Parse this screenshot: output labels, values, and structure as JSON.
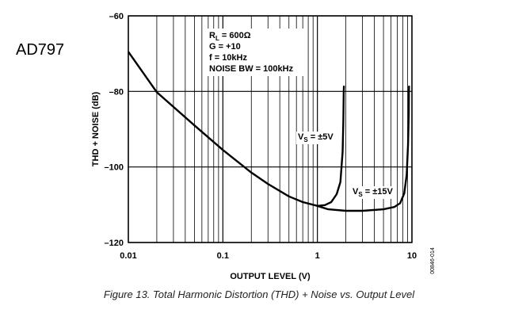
{
  "part_label": "AD797",
  "caption": "Figure 13. Total Harmonic Distortion (THD) + Noise vs. Output Level",
  "figure_id": "00846-014",
  "chart_data": {
    "type": "line",
    "title": "",
    "xlabel": "OUTPUT LEVEL (V)",
    "ylabel": "THD + NOISE (dB)",
    "x_scale": "log",
    "xlim": [
      0.01,
      10
    ],
    "ylim": [
      -120,
      -60
    ],
    "x_ticks": [
      0.01,
      0.1,
      1,
      10
    ],
    "x_tick_labels": [
      "0.01",
      "0.1",
      "1",
      "10"
    ],
    "y_ticks": [
      -60,
      -80,
      -100,
      -120
    ],
    "y_tick_labels": [
      "–60",
      "–80",
      "–100",
      "–120"
    ],
    "grid": true,
    "annotation": {
      "lines": [
        {
          "main": "R",
          "sub": "L",
          "rest": " = 600Ω"
        },
        {
          "main": "G = +10",
          "sub": "",
          "rest": ""
        },
        {
          "main": "f = 10kHz",
          "sub": "",
          "rest": ""
        },
        {
          "main": "NOISE BW = 100kHz",
          "sub": "",
          "rest": ""
        }
      ]
    },
    "series": [
      {
        "label": {
          "main": "V",
          "sub": "S",
          "rest": " = ±5V"
        },
        "points": [
          [
            0.01,
            -69.5
          ],
          [
            0.02,
            -80.2
          ],
          [
            0.05,
            -89
          ],
          [
            0.1,
            -95.5
          ],
          [
            0.2,
            -101.5
          ],
          [
            0.3,
            -104.5
          ],
          [
            0.5,
            -107.8
          ],
          [
            0.7,
            -109.3
          ],
          [
            1.0,
            -110.3
          ],
          [
            1.2,
            -110.1
          ],
          [
            1.4,
            -109.3
          ],
          [
            1.6,
            -107.2
          ],
          [
            1.75,
            -104
          ],
          [
            1.85,
            -96
          ],
          [
            1.88,
            -88
          ],
          [
            1.9,
            -80
          ],
          [
            1.91,
            -78.5
          ]
        ]
      },
      {
        "label": {
          "main": "V",
          "sub": "S",
          "rest": " = ±15V"
        },
        "points": [
          [
            1.0,
            -110.3
          ],
          [
            1.3,
            -111.2
          ],
          [
            2,
            -111.6
          ],
          [
            3,
            -111.6
          ],
          [
            5,
            -111.2
          ],
          [
            6.5,
            -110.6
          ],
          [
            7.5,
            -109.6
          ],
          [
            8.3,
            -107
          ],
          [
            8.8,
            -102
          ],
          [
            9.1,
            -94
          ],
          [
            9.25,
            -86
          ],
          [
            9.3,
            -80
          ],
          [
            9.32,
            -78.5
          ]
        ]
      }
    ]
  }
}
